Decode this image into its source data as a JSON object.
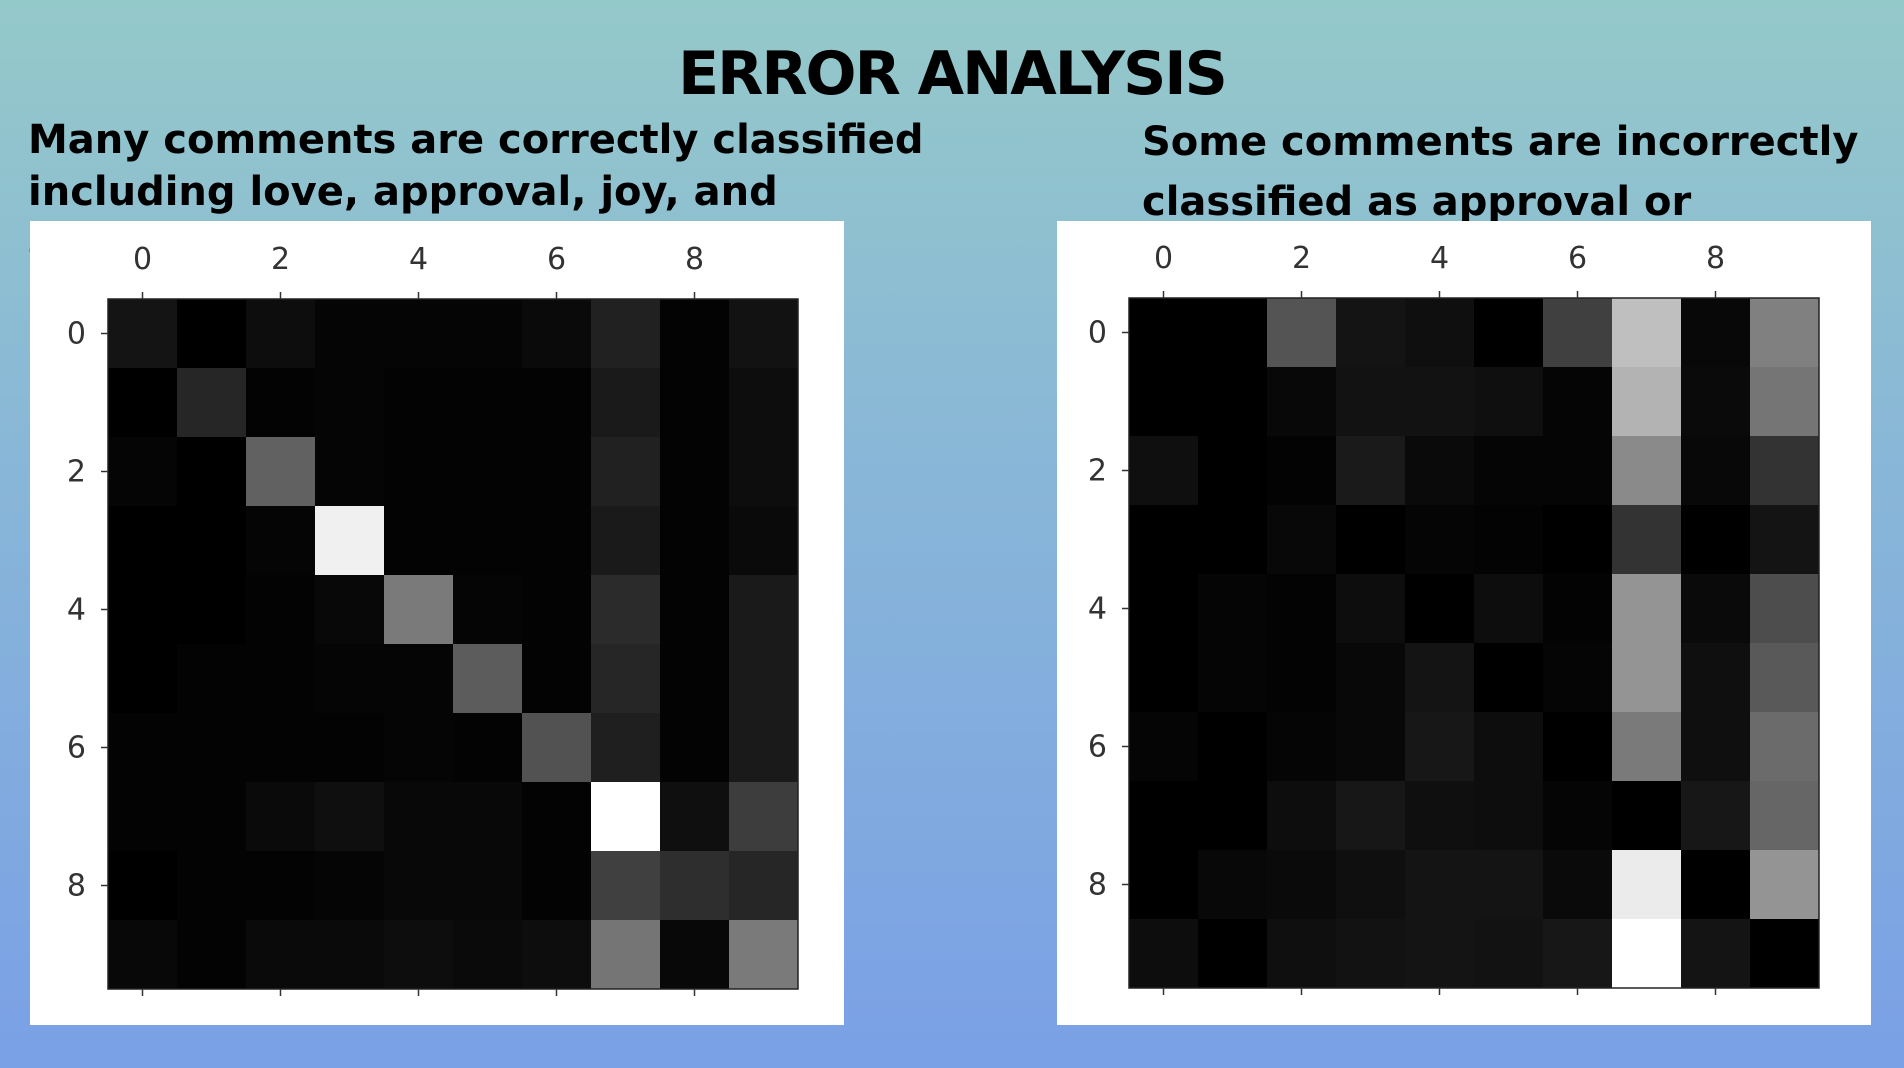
{
  "slide": {
    "title": "ERROR ANALYSIS",
    "left_caption": "Many comments are correctly classified\nincluding love, approval, joy, and anger.",
    "right_caption": "Some comments are incorrectly\nclassified as approval or curiosity."
  },
  "chart_data": [
    {
      "type": "heatmap",
      "colormap": "grayscale",
      "x_ticks": [
        "0",
        "2",
        "4",
        "6",
        "8"
      ],
      "y_ticks": [
        "0",
        "2",
        "4",
        "6",
        "8"
      ],
      "matrix": [
        [
          0.08,
          0.0,
          0.05,
          0.02,
          0.02,
          0.02,
          0.04,
          0.13,
          0.01,
          0.07
        ],
        [
          0.0,
          0.15,
          0.01,
          0.02,
          0.01,
          0.01,
          0.01,
          0.1,
          0.01,
          0.05
        ],
        [
          0.02,
          0.0,
          0.38,
          0.02,
          0.01,
          0.01,
          0.01,
          0.13,
          0.01,
          0.05
        ],
        [
          0.0,
          0.0,
          0.02,
          0.94,
          0.01,
          0.01,
          0.01,
          0.1,
          0.01,
          0.04
        ],
        [
          0.0,
          0.0,
          0.01,
          0.03,
          0.48,
          0.02,
          0.01,
          0.17,
          0.01,
          0.1
        ],
        [
          0.0,
          0.01,
          0.01,
          0.02,
          0.02,
          0.36,
          0.01,
          0.15,
          0.01,
          0.1
        ],
        [
          0.01,
          0.01,
          0.01,
          0.01,
          0.02,
          0.01,
          0.32,
          0.12,
          0.01,
          0.1
        ],
        [
          0.01,
          0.01,
          0.04,
          0.06,
          0.03,
          0.03,
          0.01,
          1.0,
          0.06,
          0.24
        ],
        [
          0.0,
          0.01,
          0.01,
          0.02,
          0.03,
          0.03,
          0.01,
          0.25,
          0.18,
          0.15
        ],
        [
          0.03,
          0.01,
          0.04,
          0.04,
          0.05,
          0.04,
          0.05,
          0.46,
          0.03,
          0.48
        ]
      ]
    },
    {
      "type": "heatmap",
      "colormap": "grayscale",
      "x_ticks": [
        "0",
        "2",
        "4",
        "6",
        "8"
      ],
      "y_ticks": [
        "0",
        "2",
        "4",
        "6",
        "8"
      ],
      "matrix": [
        [
          0.0,
          0.0,
          0.33,
          0.08,
          0.06,
          0.0,
          0.25,
          0.75,
          0.03,
          0.5
        ],
        [
          0.0,
          0.0,
          0.03,
          0.07,
          0.07,
          0.06,
          0.02,
          0.7,
          0.04,
          0.46
        ],
        [
          0.06,
          0.0,
          0.01,
          0.1,
          0.04,
          0.02,
          0.02,
          0.54,
          0.03,
          0.2
        ],
        [
          0.0,
          0.0,
          0.03,
          0.0,
          0.02,
          0.01,
          0.0,
          0.2,
          0.0,
          0.08
        ],
        [
          0.0,
          0.02,
          0.01,
          0.05,
          0.0,
          0.05,
          0.01,
          0.58,
          0.04,
          0.3
        ],
        [
          0.0,
          0.02,
          0.01,
          0.03,
          0.08,
          0.0,
          0.02,
          0.58,
          0.06,
          0.35
        ],
        [
          0.02,
          0.0,
          0.02,
          0.03,
          0.09,
          0.05,
          0.0,
          0.48,
          0.06,
          0.42
        ],
        [
          0.0,
          0.0,
          0.05,
          0.09,
          0.06,
          0.05,
          0.02,
          0.0,
          0.09,
          0.4
        ],
        [
          0.0,
          0.03,
          0.04,
          0.06,
          0.08,
          0.08,
          0.04,
          0.92,
          0.0,
          0.58
        ],
        [
          0.05,
          0.0,
          0.06,
          0.07,
          0.08,
          0.07,
          0.09,
          1.0,
          0.08,
          0.0
        ]
      ]
    }
  ]
}
